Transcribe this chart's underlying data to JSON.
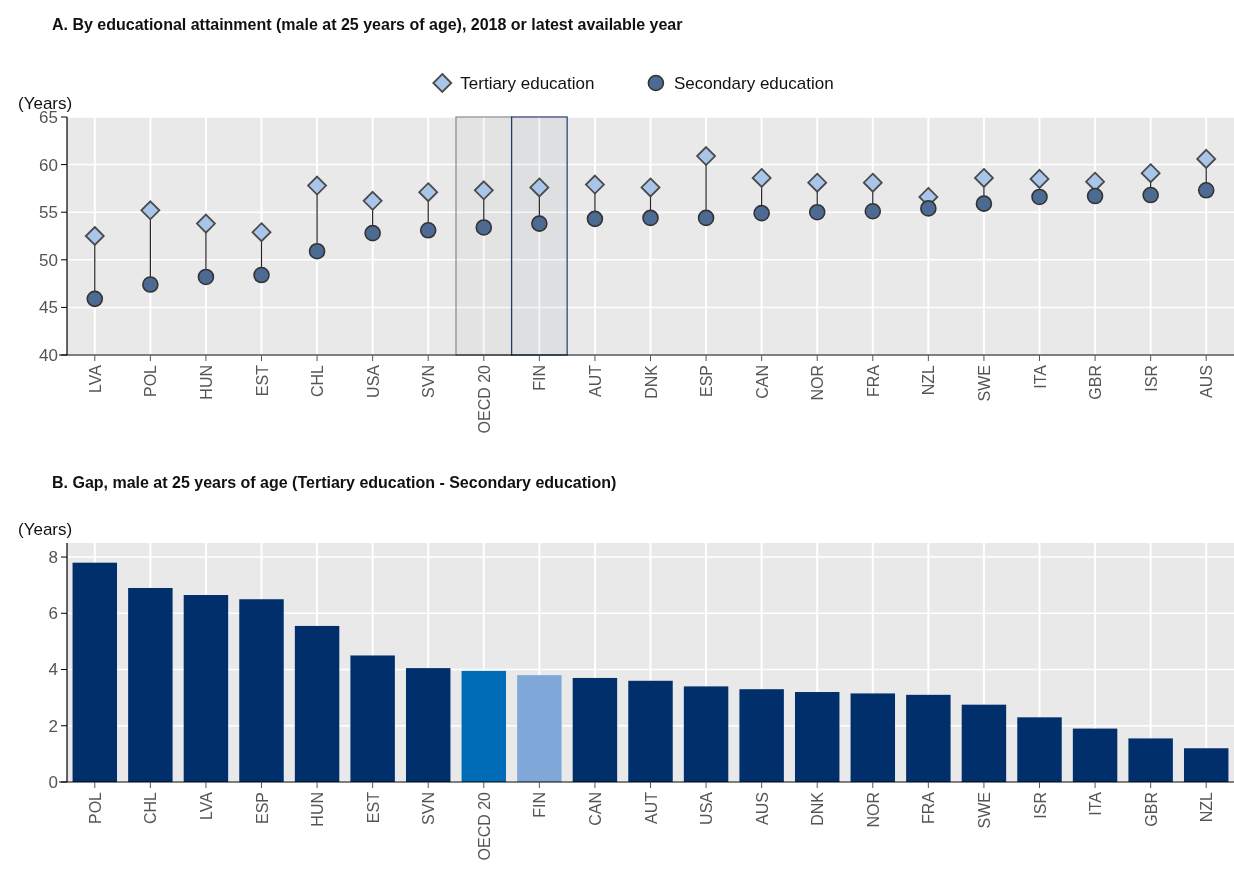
{
  "chart_data": [
    {
      "type": "scatter",
      "title": "A. By educational attainment (male at 25 years of age), 2018 or latest available year",
      "ylabel": "(Years)",
      "categories": [
        "LVA",
        "POL",
        "HUN",
        "EST",
        "CHL",
        "USA",
        "SVN",
        "OECD 20",
        "FIN",
        "AUT",
        "DNK",
        "ESP",
        "CAN",
        "NOR",
        "FRA",
        "NZL",
        "SWE",
        "ITA",
        "GBR",
        "ISR",
        "AUS"
      ],
      "series": [
        {
          "name": "Tertiary education",
          "color": "#a9c5ea",
          "marker": "diamond",
          "values": [
            52.5,
            55.2,
            53.8,
            52.9,
            57.8,
            56.2,
            57.1,
            57.3,
            57.6,
            57.9,
            57.6,
            60.9,
            58.6,
            58.1,
            58.1,
            56.6,
            58.6,
            58.5,
            58.2,
            59.1,
            60.6
          ]
        },
        {
          "name": "Secondary education",
          "color": "#4d6a93",
          "marker": "circle",
          "values": [
            45.9,
            47.4,
            48.2,
            48.4,
            50.9,
            52.8,
            53.1,
            53.4,
            53.8,
            54.3,
            54.4,
            54.4,
            54.9,
            55.0,
            55.1,
            55.4,
            55.9,
            56.6,
            56.7,
            56.8,
            57.3
          ]
        }
      ],
      "bands": [
        {
          "axis": "x",
          "from": "OECD 20",
          "to": "OECD 20",
          "color": "#888888"
        },
        {
          "axis": "x",
          "from": "FIN",
          "to": "FIN",
          "color": "#1f3d6e"
        }
      ],
      "ylim": [
        40,
        65
      ],
      "yticks": [
        40,
        45,
        50,
        55,
        60,
        65
      ],
      "grid": true,
      "legend": "top"
    },
    {
      "type": "bar",
      "title": "B. Gap, male at 25 years of age (Tertiary education - Secondary education)",
      "ylabel": "(Years)",
      "categories": [
        "POL",
        "CHL",
        "LVA",
        "ESP",
        "HUN",
        "EST",
        "SVN",
        "OECD 20",
        "FIN",
        "CAN",
        "AUT",
        "USA",
        "AUS",
        "DNK",
        "NOR",
        "FRA",
        "SWE",
        "ISR",
        "ITA",
        "GBR",
        "NZL"
      ],
      "values": [
        7.8,
        6.9,
        6.65,
        6.5,
        5.55,
        4.5,
        4.05,
        3.95,
        3.8,
        3.7,
        3.6,
        3.4,
        3.3,
        3.2,
        3.15,
        3.1,
        2.75,
        2.3,
        1.9,
        1.55,
        1.2
      ],
      "colors": [
        "#002f6c",
        "#002f6c",
        "#002f6c",
        "#002f6c",
        "#002f6c",
        "#002f6c",
        "#002f6c",
        "#006bb6",
        "#7fa8d9",
        "#002f6c",
        "#002f6c",
        "#002f6c",
        "#002f6c",
        "#002f6c",
        "#002f6c",
        "#002f6c",
        "#002f6c",
        "#002f6c",
        "#002f6c",
        "#002f6c",
        "#002f6c"
      ],
      "ylim": [
        0,
        8.5
      ],
      "yticks": [
        0,
        2,
        4,
        6,
        8
      ],
      "grid": true
    }
  ]
}
